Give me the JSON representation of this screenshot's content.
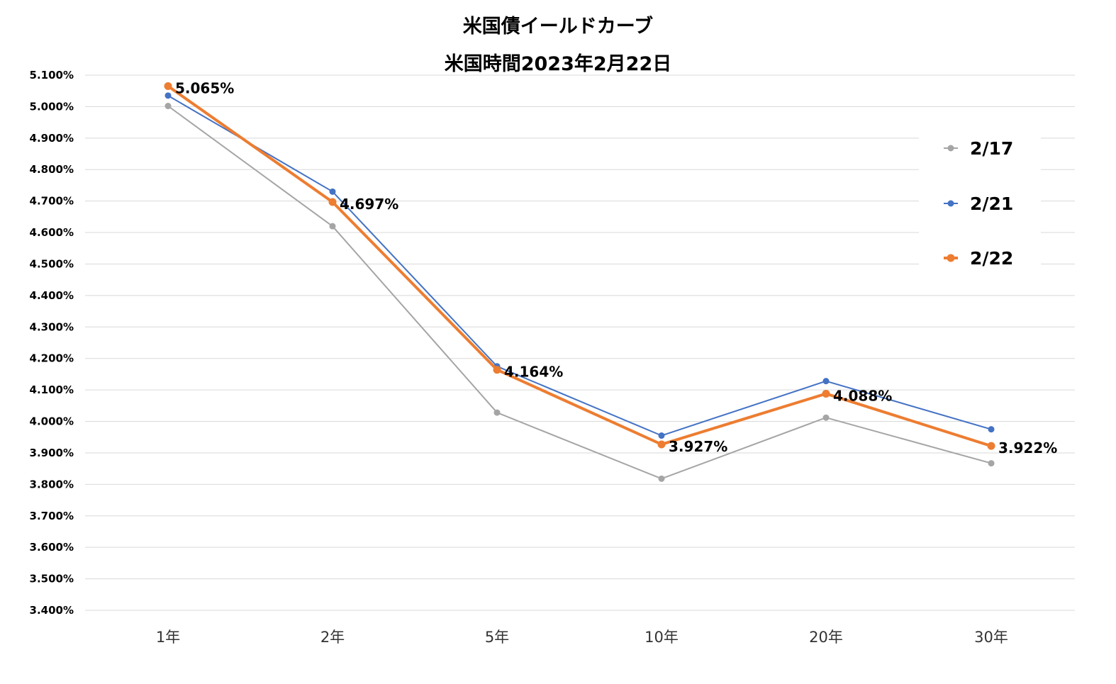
{
  "chart_data": {
    "type": "line",
    "title": "米国債イールドカーブ",
    "subtitle": "米国時間2023年2月22日",
    "xlabel": "",
    "ylabel": "",
    "categories": [
      "1年",
      "2年",
      "5年",
      "10年",
      "20年",
      "30年"
    ],
    "ylim": [
      3.4,
      5.1
    ],
    "ytick_step": 0.1,
    "ytick_format": "0.000%",
    "grid": true,
    "legend_position": "right",
    "series": [
      {
        "name": "2/17",
        "color": "#a5a5a5",
        "values": [
          5.002,
          4.62,
          4.028,
          3.818,
          4.012,
          3.867
        ],
        "emphasis": false
      },
      {
        "name": "2/21",
        "color": "#4472c4",
        "values": [
          5.035,
          4.73,
          4.175,
          3.955,
          4.128,
          3.975
        ],
        "emphasis": false
      },
      {
        "name": "2/22",
        "color": "#ed7d31",
        "values": [
          5.065,
          4.697,
          4.164,
          3.927,
          4.088,
          3.922
        ],
        "emphasis": true,
        "data_labels": [
          "5.065%",
          "4.697%",
          "4.164%",
          "3.927%",
          "4.088%",
          "3.922%"
        ]
      }
    ]
  }
}
